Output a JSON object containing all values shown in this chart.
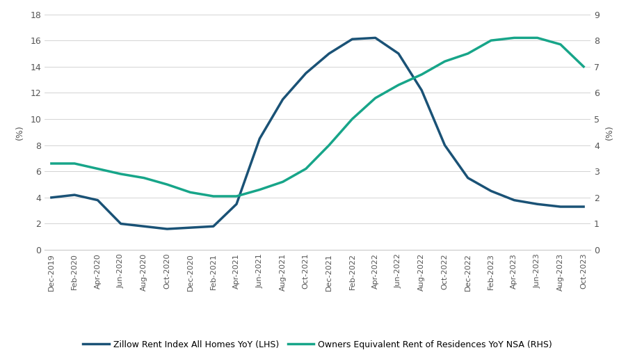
{
  "x_labels": [
    "Dec-2019",
    "Feb-2020",
    "Apr-2020",
    "Jun-2020",
    "Aug-2020",
    "Oct-2020",
    "Dec-2020",
    "Feb-2021",
    "Apr-2021",
    "Jun-2021",
    "Aug-2021",
    "Oct-2021",
    "Dec-2021",
    "Feb-2022",
    "Apr-2022",
    "Jun-2022",
    "Aug-2022",
    "Oct-2022",
    "Dec-2022",
    "Feb-2023",
    "Apr-2023",
    "Jun-2023",
    "Aug-2023",
    "Oct-2023"
  ],
  "zillow_lhs": [
    4.0,
    4.2,
    3.8,
    2.0,
    1.8,
    1.6,
    1.7,
    1.8,
    3.5,
    8.5,
    11.5,
    13.5,
    15.0,
    16.1,
    16.2,
    15.0,
    12.2,
    8.0,
    5.5,
    4.5,
    3.8,
    3.5,
    3.3,
    3.3
  ],
  "oer_rhs": [
    3.3,
    3.3,
    3.1,
    2.9,
    2.75,
    2.5,
    2.2,
    2.05,
    2.05,
    2.3,
    2.6,
    3.1,
    4.0,
    5.0,
    5.8,
    6.3,
    6.7,
    7.2,
    7.5,
    8.0,
    8.1,
    8.1,
    7.85,
    7.0
  ],
  "zillow_color": "#1a5276",
  "oer_color": "#17a589",
  "lhs_ylim": [
    0,
    18
  ],
  "rhs_ylim": [
    0,
    9
  ],
  "lhs_yticks": [
    0,
    2,
    4,
    6,
    8,
    10,
    12,
    14,
    16,
    18
  ],
  "rhs_yticks": [
    0,
    1,
    2,
    3,
    4,
    5,
    6,
    7,
    8,
    9
  ],
  "ylabel_left": "(%)",
  "ylabel_right": "(%)",
  "legend_zillow": "Zillow Rent Index All Homes YoY (LHS)",
  "legend_oer": "Owners Equivalent Rent of Residences YoY NSA (RHS)",
  "line_width": 2.5,
  "bg_color": "#ffffff",
  "grid_color": "#cccccc",
  "tick_label_color": "#555555",
  "axis_label_color": "#555555",
  "tick_fontsize": 9,
  "x_tick_fontsize": 8
}
